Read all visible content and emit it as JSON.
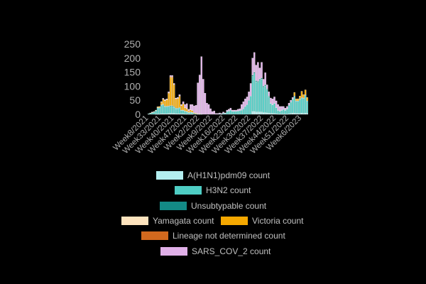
{
  "chart_data": {
    "type": "bar",
    "stacked": true,
    "title": "",
    "xlabel": "",
    "ylabel": "",
    "ylim": [
      0,
      250
    ],
    "yticks": [
      0,
      50,
      100,
      150,
      200,
      250
    ],
    "grid": false,
    "legend_position": "bottom",
    "tick_labels": [
      {
        "index": 0,
        "label": "Week8/2021"
      },
      {
        "index": 7,
        "label": "Week33/2021"
      },
      {
        "index": 14,
        "label": "Week40/2021"
      },
      {
        "index": 21,
        "label": "Week47/2021"
      },
      {
        "index": 28,
        "label": "Week2/2022"
      },
      {
        "index": 35,
        "label": "Week9/2022"
      },
      {
        "index": 42,
        "label": "Week16/2022"
      },
      {
        "index": 49,
        "label": "Week23/2022"
      },
      {
        "index": 56,
        "label": "Week30/2022"
      },
      {
        "index": 63,
        "label": "Week37/2022"
      },
      {
        "index": 70,
        "label": "Week44/2022"
      },
      {
        "index": 77,
        "label": "Week51/2022"
      },
      {
        "index": 84,
        "label": "Week6/2023"
      }
    ],
    "n_categories": 88,
    "series": [
      {
        "name": "A(H1N1)pdm09 count",
        "color": "#b3eef0",
        "values": [
          0,
          0,
          0,
          0,
          1,
          1,
          1,
          2,
          2,
          2,
          2,
          3,
          3,
          3,
          3,
          2,
          2,
          2,
          2,
          2,
          1,
          1,
          1,
          1,
          1,
          0,
          0,
          0,
          0,
          0,
          0,
          0,
          0,
          0,
          0,
          0,
          0,
          0,
          0,
          0,
          0,
          0,
          0,
          0,
          0,
          0,
          0,
          0,
          0,
          0,
          0,
          0,
          0,
          0,
          0,
          0,
          0,
          10,
          10,
          8,
          8,
          8,
          8,
          6,
          6,
          5,
          4,
          3,
          3,
          3,
          2,
          1,
          1,
          1,
          1,
          1,
          1,
          2,
          3,
          4,
          4,
          3,
          3,
          3,
          4,
          3,
          4,
          3
        ]
      },
      {
        "name": "H3N2 count",
        "color": "#4ecdc4",
        "values": [
          2,
          4,
          6,
          8,
          12,
          22,
          22,
          30,
          32,
          25,
          25,
          25,
          25,
          25,
          22,
          18,
          18,
          20,
          12,
          12,
          10,
          8,
          5,
          6,
          5,
          3,
          2,
          1,
          1,
          1,
          0,
          0,
          0,
          0,
          0,
          0,
          0,
          0,
          0,
          2,
          1,
          4,
          3,
          10,
          12,
          15,
          11,
          11,
          11,
          12,
          13,
          15,
          20,
          28,
          35,
          50,
          65,
          125,
          135,
          108,
          106,
          113,
          118,
          90,
          95,
          82,
          58,
          36,
          31,
          36,
          22,
          13,
          10,
          13,
          16,
          13,
          18,
          30,
          40,
          49,
          59,
          43,
          43,
          50,
          54,
          53,
          63,
          43
        ]
      },
      {
        "name": "Unsubtypable count",
        "color": "#138a86",
        "values": [
          0,
          0,
          0,
          1,
          1,
          1,
          1,
          2,
          2,
          2,
          2,
          2,
          3,
          3,
          2,
          2,
          2,
          2,
          1,
          1,
          1,
          1,
          1,
          1,
          1,
          0,
          0,
          0,
          0,
          0,
          0,
          0,
          0,
          0,
          0,
          0,
          0,
          0,
          0,
          0,
          0,
          0,
          0,
          0,
          0,
          0,
          0,
          0,
          0,
          0,
          0,
          0,
          0,
          0,
          0,
          0,
          0,
          5,
          5,
          4,
          4,
          4,
          4,
          4,
          4,
          3,
          3,
          1,
          1,
          1,
          1,
          1,
          1,
          1,
          1,
          1,
          1,
          1,
          2,
          2,
          2,
          2,
          2,
          2,
          2,
          2,
          2,
          2
        ]
      },
      {
        "name": "Yamagata count",
        "color": "#fde3bd",
        "values": [
          0,
          0,
          0,
          0,
          0,
          0,
          0,
          0,
          0,
          0,
          0,
          0,
          0,
          0,
          0,
          0,
          0,
          0,
          0,
          0,
          0,
          0,
          0,
          0,
          0,
          0,
          0,
          0,
          0,
          0,
          0,
          0,
          0,
          0,
          0,
          0,
          0,
          0,
          0,
          0,
          0,
          0,
          0,
          0,
          0,
          0,
          0,
          0,
          0,
          0,
          0,
          0,
          0,
          0,
          0,
          0,
          0,
          0,
          0,
          0,
          0,
          0,
          0,
          0,
          0,
          0,
          0,
          0,
          0,
          0,
          0,
          0,
          0,
          0,
          0,
          0,
          0,
          0,
          0,
          0,
          0,
          0,
          0,
          0,
          0,
          0,
          0,
          0
        ]
      },
      {
        "name": "Victoria count",
        "color": "#f5a800",
        "values": [
          0,
          1,
          1,
          1,
          1,
          3,
          4,
          10,
          18,
          20,
          23,
          45,
          100,
          100,
          78,
          32,
          34,
          40,
          16,
          22,
          12,
          10,
          5,
          8,
          6,
          3,
          2,
          1,
          1,
          0,
          0,
          0,
          0,
          0,
          0,
          0,
          0,
          0,
          0,
          0,
          0,
          0,
          0,
          0,
          0,
          0,
          0,
          0,
          0,
          0,
          0,
          0,
          0,
          0,
          0,
          0,
          0,
          0,
          0,
          0,
          0,
          0,
          0,
          0,
          0,
          0,
          0,
          0,
          0,
          0,
          0,
          0,
          0,
          0,
          0,
          0,
          0,
          0,
          0,
          0,
          13,
          7,
          7,
          10,
          22,
          12,
          18,
          12
        ]
      },
      {
        "name": "Lineage not determined count",
        "color": "#d2691e",
        "values": [
          0,
          0,
          0,
          0,
          0,
          0,
          0,
          0,
          1,
          1,
          1,
          2,
          3,
          3,
          2,
          2,
          2,
          2,
          1,
          1,
          1,
          1,
          0,
          1,
          1,
          0,
          0,
          0,
          0,
          0,
          0,
          0,
          0,
          0,
          0,
          0,
          0,
          0,
          0,
          0,
          0,
          0,
          0,
          0,
          0,
          0,
          0,
          0,
          0,
          0,
          0,
          0,
          0,
          0,
          0,
          0,
          0,
          0,
          0,
          0,
          0,
          0,
          0,
          0,
          0,
          0,
          0,
          0,
          0,
          0,
          0,
          0,
          0,
          0,
          0,
          0,
          0,
          0,
          0,
          0,
          0,
          0,
          0,
          0,
          0,
          0,
          0,
          0
        ]
      },
      {
        "name": "SARS_COV_2 count",
        "color": "#e0b0e8",
        "values": [
          0,
          0,
          1,
          0,
          0,
          0,
          0,
          1,
          2,
          2,
          2,
          3,
          4,
          4,
          3,
          2,
          2,
          4,
          3,
          7,
          10,
          17,
          6,
          18,
          21,
          24,
          28,
          110,
          138,
          204,
          125,
          75,
          40,
          35,
          20,
          10,
          12,
          3,
          3,
          3,
          2,
          4,
          2,
          5,
          6,
          7,
          4,
          4,
          4,
          6,
          7,
          20,
          25,
          27,
          27,
          30,
          45,
          60,
          70,
          55,
          67,
          40,
          55,
          25,
          43,
          15,
          15,
          18,
          20,
          22,
          23,
          20,
          16,
          13,
          10,
          7,
          8,
          7,
          5,
          5,
          0,
          0,
          0,
          0,
          0,
          0,
          0,
          0
        ]
      }
    ]
  }
}
